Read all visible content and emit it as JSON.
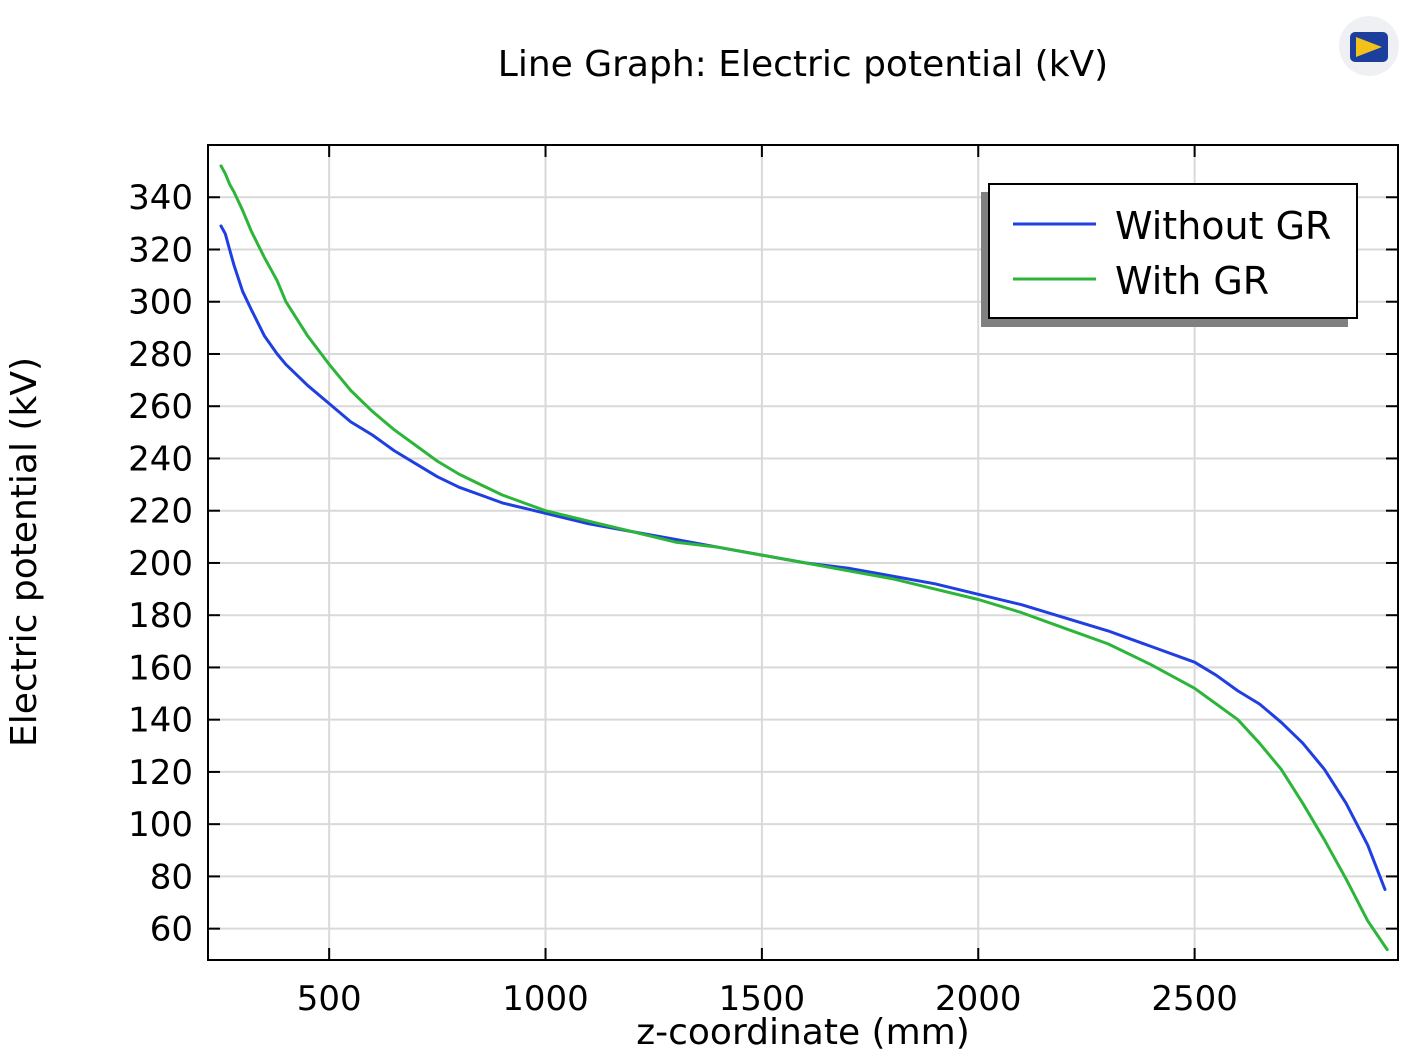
{
  "chart_data": {
    "type": "line",
    "title": "Line Graph: Electric potential (kV)",
    "xlabel": "z-coordinate (mm)",
    "ylabel": "Electric potential (kV)",
    "xlim": [
      220,
      2970
    ],
    "ylim": [
      48,
      360
    ],
    "xticks": [
      500,
      1000,
      1500,
      2000,
      2500
    ],
    "yticks": [
      60,
      80,
      100,
      120,
      140,
      160,
      180,
      200,
      220,
      240,
      260,
      280,
      300,
      320,
      340
    ],
    "grid": true,
    "legend_position": "top-right",
    "series": [
      {
        "name": "Without GR",
        "color": "#1f3fe0",
        "x": [
          250,
          260,
          270,
          280,
          300,
          320,
          350,
          380,
          400,
          450,
          500,
          550,
          600,
          650,
          700,
          750,
          800,
          850,
          900,
          950,
          1000,
          1100,
          1200,
          1300,
          1400,
          1500,
          1600,
          1700,
          1800,
          1900,
          2000,
          2100,
          2200,
          2300,
          2400,
          2500,
          2550,
          2600,
          2650,
          2700,
          2750,
          2800,
          2850,
          2900,
          2940
        ],
        "values": [
          329,
          326,
          320,
          314,
          304,
          297,
          287,
          280,
          276,
          268,
          261,
          254,
          249,
          243,
          238,
          233,
          229,
          226,
          223,
          221,
          219,
          215,
          212,
          209,
          206,
          203,
          200,
          198,
          195,
          192,
          188,
          184,
          179,
          174,
          168,
          162,
          157,
          151,
          146,
          139,
          131,
          121,
          108,
          92,
          75
        ]
      },
      {
        "name": "With GR",
        "color": "#2db53a",
        "x": [
          250,
          260,
          270,
          280,
          300,
          320,
          350,
          380,
          400,
          450,
          500,
          550,
          600,
          650,
          700,
          750,
          800,
          850,
          900,
          950,
          1000,
          1100,
          1200,
          1300,
          1400,
          1500,
          1600,
          1700,
          1800,
          1900,
          2000,
          2100,
          2200,
          2300,
          2400,
          2500,
          2550,
          2600,
          2650,
          2700,
          2750,
          2800,
          2850,
          2900,
          2945
        ],
        "values": [
          352,
          349,
          345,
          342,
          335,
          327,
          317,
          308,
          300,
          287,
          276,
          266,
          258,
          251,
          245,
          239,
          234,
          230,
          226,
          223,
          220,
          216,
          212,
          208,
          206,
          203,
          200,
          197,
          194,
          190,
          186,
          181,
          175,
          169,
          161,
          152,
          146,
          140,
          131,
          121,
          108,
          94,
          79,
          63,
          52
        ]
      }
    ]
  }
}
